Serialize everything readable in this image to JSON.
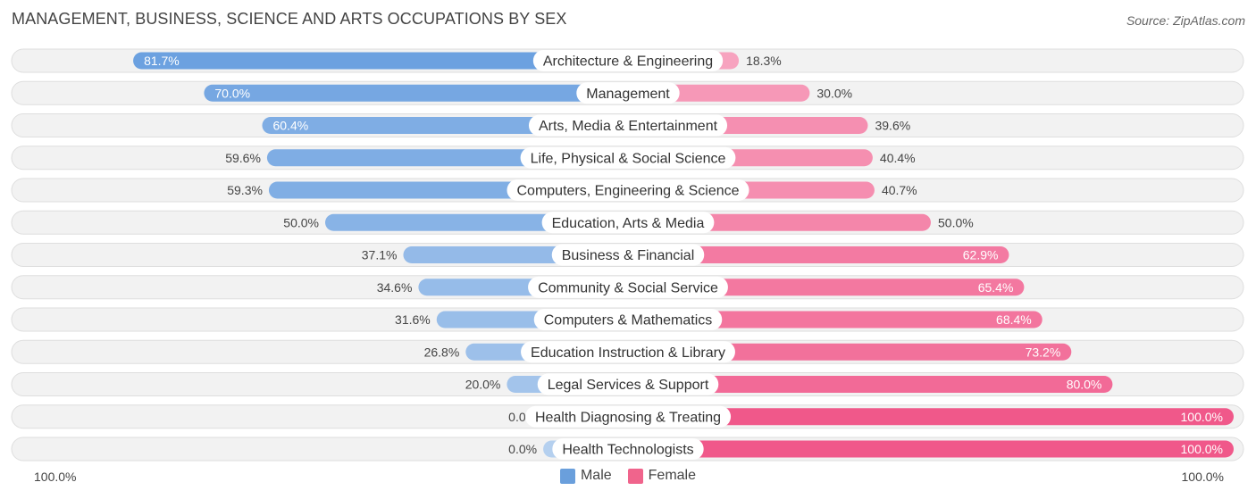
{
  "title": "MANAGEMENT, BUSINESS, SCIENCE AND ARTS OCCUPATIONS BY SEX",
  "source": "Source: ZipAtlas.com",
  "axis_left_label": "100.0%",
  "axis_right_label": "100.0%",
  "legend": {
    "male_label": "Male",
    "female_label": "Female",
    "male_color": "#6a9fdc",
    "female_color": "#f0648c"
  },
  "chart_data": {
    "type": "bar",
    "orientation": "horizontal-diverging",
    "title": "MANAGEMENT, BUSINESS, SCIENCE AND ARTS OCCUPATIONS BY SEX",
    "xlim": [
      -100,
      100
    ],
    "categories": [
      "Architecture & Engineering",
      "Management",
      "Arts, Media & Entertainment",
      "Life, Physical & Social Science",
      "Computers, Engineering & Science",
      "Education, Arts & Media",
      "Business & Financial",
      "Community & Social Service",
      "Computers & Mathematics",
      "Education Instruction & Library",
      "Legal Services & Support",
      "Health Diagnosing & Treating",
      "Health Technologists"
    ],
    "series": [
      {
        "name": "Male",
        "values": [
          81.7,
          70.0,
          60.4,
          59.6,
          59.3,
          50.0,
          37.1,
          34.6,
          31.6,
          26.8,
          20.0,
          0.0,
          0.0
        ],
        "labels": [
          "81.7%",
          "70.0%",
          "60.4%",
          "59.6%",
          "59.3%",
          "50.0%",
          "37.1%",
          "34.6%",
          "31.6%",
          "26.8%",
          "20.0%",
          "0.0%",
          "0.0%"
        ]
      },
      {
        "name": "Female",
        "values": [
          18.3,
          30.0,
          39.6,
          40.4,
          40.7,
          50.0,
          62.9,
          65.4,
          68.4,
          73.2,
          80.0,
          100.0,
          100.0
        ],
        "labels": [
          "18.3%",
          "30.0%",
          "39.6%",
          "40.4%",
          "40.7%",
          "50.0%",
          "62.9%",
          "65.4%",
          "68.4%",
          "73.2%",
          "80.0%",
          "100.0%",
          "100.0%"
        ]
      }
    ]
  }
}
